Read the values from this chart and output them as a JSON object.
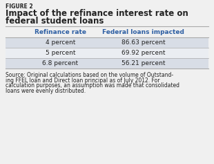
{
  "figure_label": "FIGURE 2",
  "title_line1": "Impact of the refinance interest rate on",
  "title_line2": "federal student loans",
  "col1_header": "Refinance rate",
  "col2_header": "Federal loans impacted",
  "rows": [
    [
      "4 percent",
      "86.63 percent"
    ],
    [
      "5 percent",
      "69.92 percent"
    ],
    [
      "6.8 percent",
      "56.21 percent"
    ]
  ],
  "source_lines": [
    "Source: Original calculations based on the volume of Outstand-",
    "ing FFEL loan and Direct loan principal as of July 2012. For",
    "calculation purposes, an assumption was made that consolidated",
    "loans were evenly distributed."
  ],
  "bg_color": "#f0f0f0",
  "table_bg": "#f0f0f0",
  "header_color": "#2e5fa3",
  "row_bg_odd": "#d8dde6",
  "row_bg_even": "#eaedf2",
  "text_color": "#222222",
  "line_color": "#aaaaaa",
  "title_fontsize": 8.5,
  "label_fontsize": 5.5,
  "header_fontsize": 6.5,
  "cell_fontsize": 6.5,
  "source_fontsize": 5.5
}
